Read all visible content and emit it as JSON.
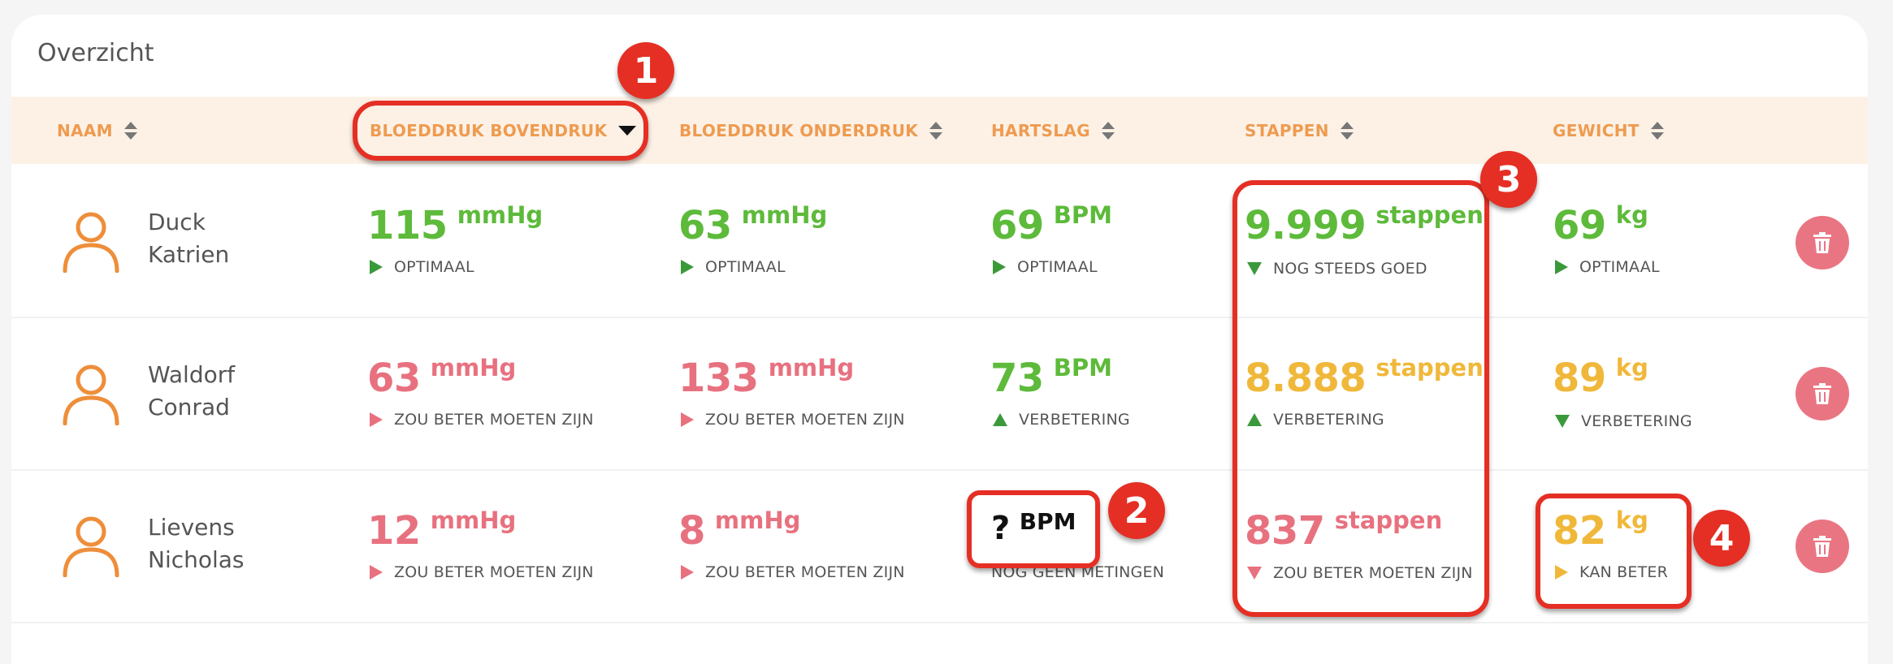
{
  "card": {
    "title": "Overzicht"
  },
  "columns": {
    "naam": "NAAM",
    "bovendruk": "BLOEDDRUK BOVENDRUK",
    "onderdruk": "BLOEDDRUK ONDERDRUK",
    "hartslag": "HARTSLAG",
    "stappen": "STAPPEN",
    "gewicht": "GEWICHT"
  },
  "rows": [
    {
      "first": "Duck",
      "last": "Katrien",
      "bovendruk": {
        "value": "115",
        "unit": "mmHg",
        "status": "OPTIMAAL"
      },
      "onderdruk": {
        "value": "63",
        "unit": "mmHg",
        "status": "OPTIMAAL"
      },
      "hartslag": {
        "value": "69",
        "unit": "BPM",
        "status": "OPTIMAAL"
      },
      "stappen": {
        "value": "9.999",
        "unit": "stappen",
        "status": "NOG STEEDS GOED"
      },
      "gewicht": {
        "value": "69",
        "unit": "kg",
        "status": "OPTIMAAL"
      }
    },
    {
      "first": "Waldorf",
      "last": "Conrad",
      "bovendruk": {
        "value": "63",
        "unit": "mmHg",
        "status": "ZOU BETER MOETEN ZIJN"
      },
      "onderdruk": {
        "value": "133",
        "unit": "mmHg",
        "status": "ZOU BETER MOETEN ZIJN"
      },
      "hartslag": {
        "value": "73",
        "unit": "BPM",
        "status": "VERBETERING"
      },
      "stappen": {
        "value": "8.888",
        "unit": "stappen",
        "status": "VERBETERING"
      },
      "gewicht": {
        "value": "89",
        "unit": "kg",
        "status": "VERBETERING"
      }
    },
    {
      "first": "Lievens",
      "last": "Nicholas",
      "bovendruk": {
        "value": "12",
        "unit": "mmHg",
        "status": "ZOU BETER MOETEN ZIJN"
      },
      "onderdruk": {
        "value": "8",
        "unit": "mmHg",
        "status": "ZOU BETER MOETEN ZIJN"
      },
      "hartslag": {
        "value": "?",
        "unit": "BPM",
        "status": "NOG GEEN METINGEN"
      },
      "stappen": {
        "value": "837",
        "unit": "stappen",
        "status": "ZOU BETER MOETEN ZIJN"
      },
      "gewicht": {
        "value": "82",
        "unit": "kg",
        "status": "KAN BETER"
      }
    }
  ],
  "annotations": [
    "1",
    "2",
    "3",
    "4"
  ],
  "colors": {
    "good": "#5dba3a",
    "bad": "#e8717f",
    "warn": "#f0b83a",
    "header_text": "#ee9b50",
    "header_bg": "#fdf1e6",
    "annotation": "#e52f24"
  },
  "icons": [
    "sort-icon",
    "sort-desc-icon",
    "user-icon",
    "trash-icon",
    "status-arrow-icon"
  ]
}
